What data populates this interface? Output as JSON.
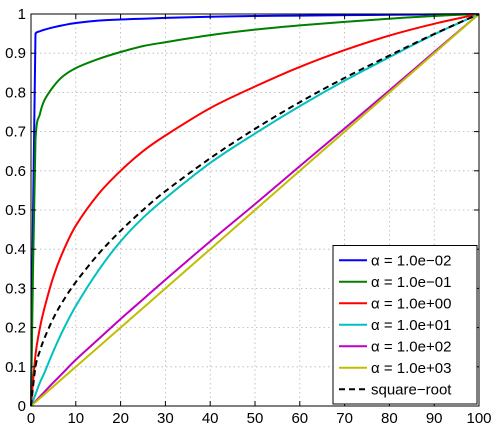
{
  "chart_data": {
    "type": "line",
    "title": "",
    "xlabel": "",
    "ylabel": "",
    "xlim": [
      0,
      100
    ],
    "ylim": [
      0,
      1
    ],
    "grid": true,
    "legend_position": "bottom-right",
    "x_ticks": [
      "0",
      "10",
      "20",
      "30",
      "40",
      "50",
      "60",
      "70",
      "80",
      "90",
      "100"
    ],
    "y_ticks": [
      "0",
      "0.1",
      "0.2",
      "0.3",
      "0.4",
      "0.5",
      "0.6",
      "0.7",
      "0.8",
      "0.9",
      "1"
    ],
    "x": [
      0,
      1,
      2,
      3,
      5,
      7,
      10,
      15,
      20,
      25,
      30,
      40,
      50,
      60,
      70,
      80,
      90,
      100
    ],
    "series": [
      {
        "name": "α = 1.0e−02",
        "color": "#0000ff",
        "style": "solid",
        "values": [
          0,
          0.95,
          0.956,
          0.96,
          0.966,
          0.971,
          0.977,
          0.983,
          0.986,
          0.988,
          0.99,
          0.993,
          0.995,
          0.996,
          0.997,
          0.998,
          0.999,
          1.0
        ]
      },
      {
        "name": "α = 1.0e−01",
        "color": "#008000",
        "style": "solid",
        "values": [
          0,
          0.68,
          0.745,
          0.78,
          0.815,
          0.84,
          0.862,
          0.885,
          0.903,
          0.918,
          0.928,
          0.946,
          0.96,
          0.971,
          0.98,
          0.988,
          0.995,
          1.0
        ]
      },
      {
        "name": "α = 1.0e+00",
        "color": "#ff0000",
        "style": "solid",
        "values": [
          0,
          0.13,
          0.2,
          0.25,
          0.33,
          0.39,
          0.46,
          0.54,
          0.6,
          0.65,
          0.69,
          0.76,
          0.815,
          0.865,
          0.908,
          0.945,
          0.975,
          1.0
        ]
      },
      {
        "name": "α = 1.0e+01",
        "color": "#00c0c0",
        "style": "solid",
        "values": [
          0,
          0.03,
          0.06,
          0.085,
          0.14,
          0.19,
          0.255,
          0.345,
          0.42,
          0.48,
          0.53,
          0.62,
          0.695,
          0.765,
          0.83,
          0.89,
          0.948,
          1.0
        ]
      },
      {
        "name": "α = 1.0e+02",
        "color": "#c000c0",
        "style": "solid",
        "values": [
          0,
          0.012,
          0.024,
          0.036,
          0.06,
          0.083,
          0.118,
          0.17,
          0.222,
          0.272,
          0.322,
          0.42,
          0.515,
          0.612,
          0.708,
          0.805,
          0.903,
          1.0
        ]
      },
      {
        "name": "α = 1.0e+03",
        "color": "#bfbf00",
        "style": "solid",
        "values": [
          0,
          0.01,
          0.02,
          0.03,
          0.05,
          0.07,
          0.1,
          0.15,
          0.2,
          0.25,
          0.3,
          0.4,
          0.5,
          0.6,
          0.7,
          0.8,
          0.9,
          1.0
        ]
      },
      {
        "name": "square−root",
        "color": "#000000",
        "style": "dashed",
        "values": [
          0,
          0.1,
          0.141,
          0.173,
          0.224,
          0.265,
          0.316,
          0.387,
          0.447,
          0.5,
          0.548,
          0.632,
          0.707,
          0.775,
          0.837,
          0.894,
          0.949,
          1.0
        ]
      }
    ]
  }
}
